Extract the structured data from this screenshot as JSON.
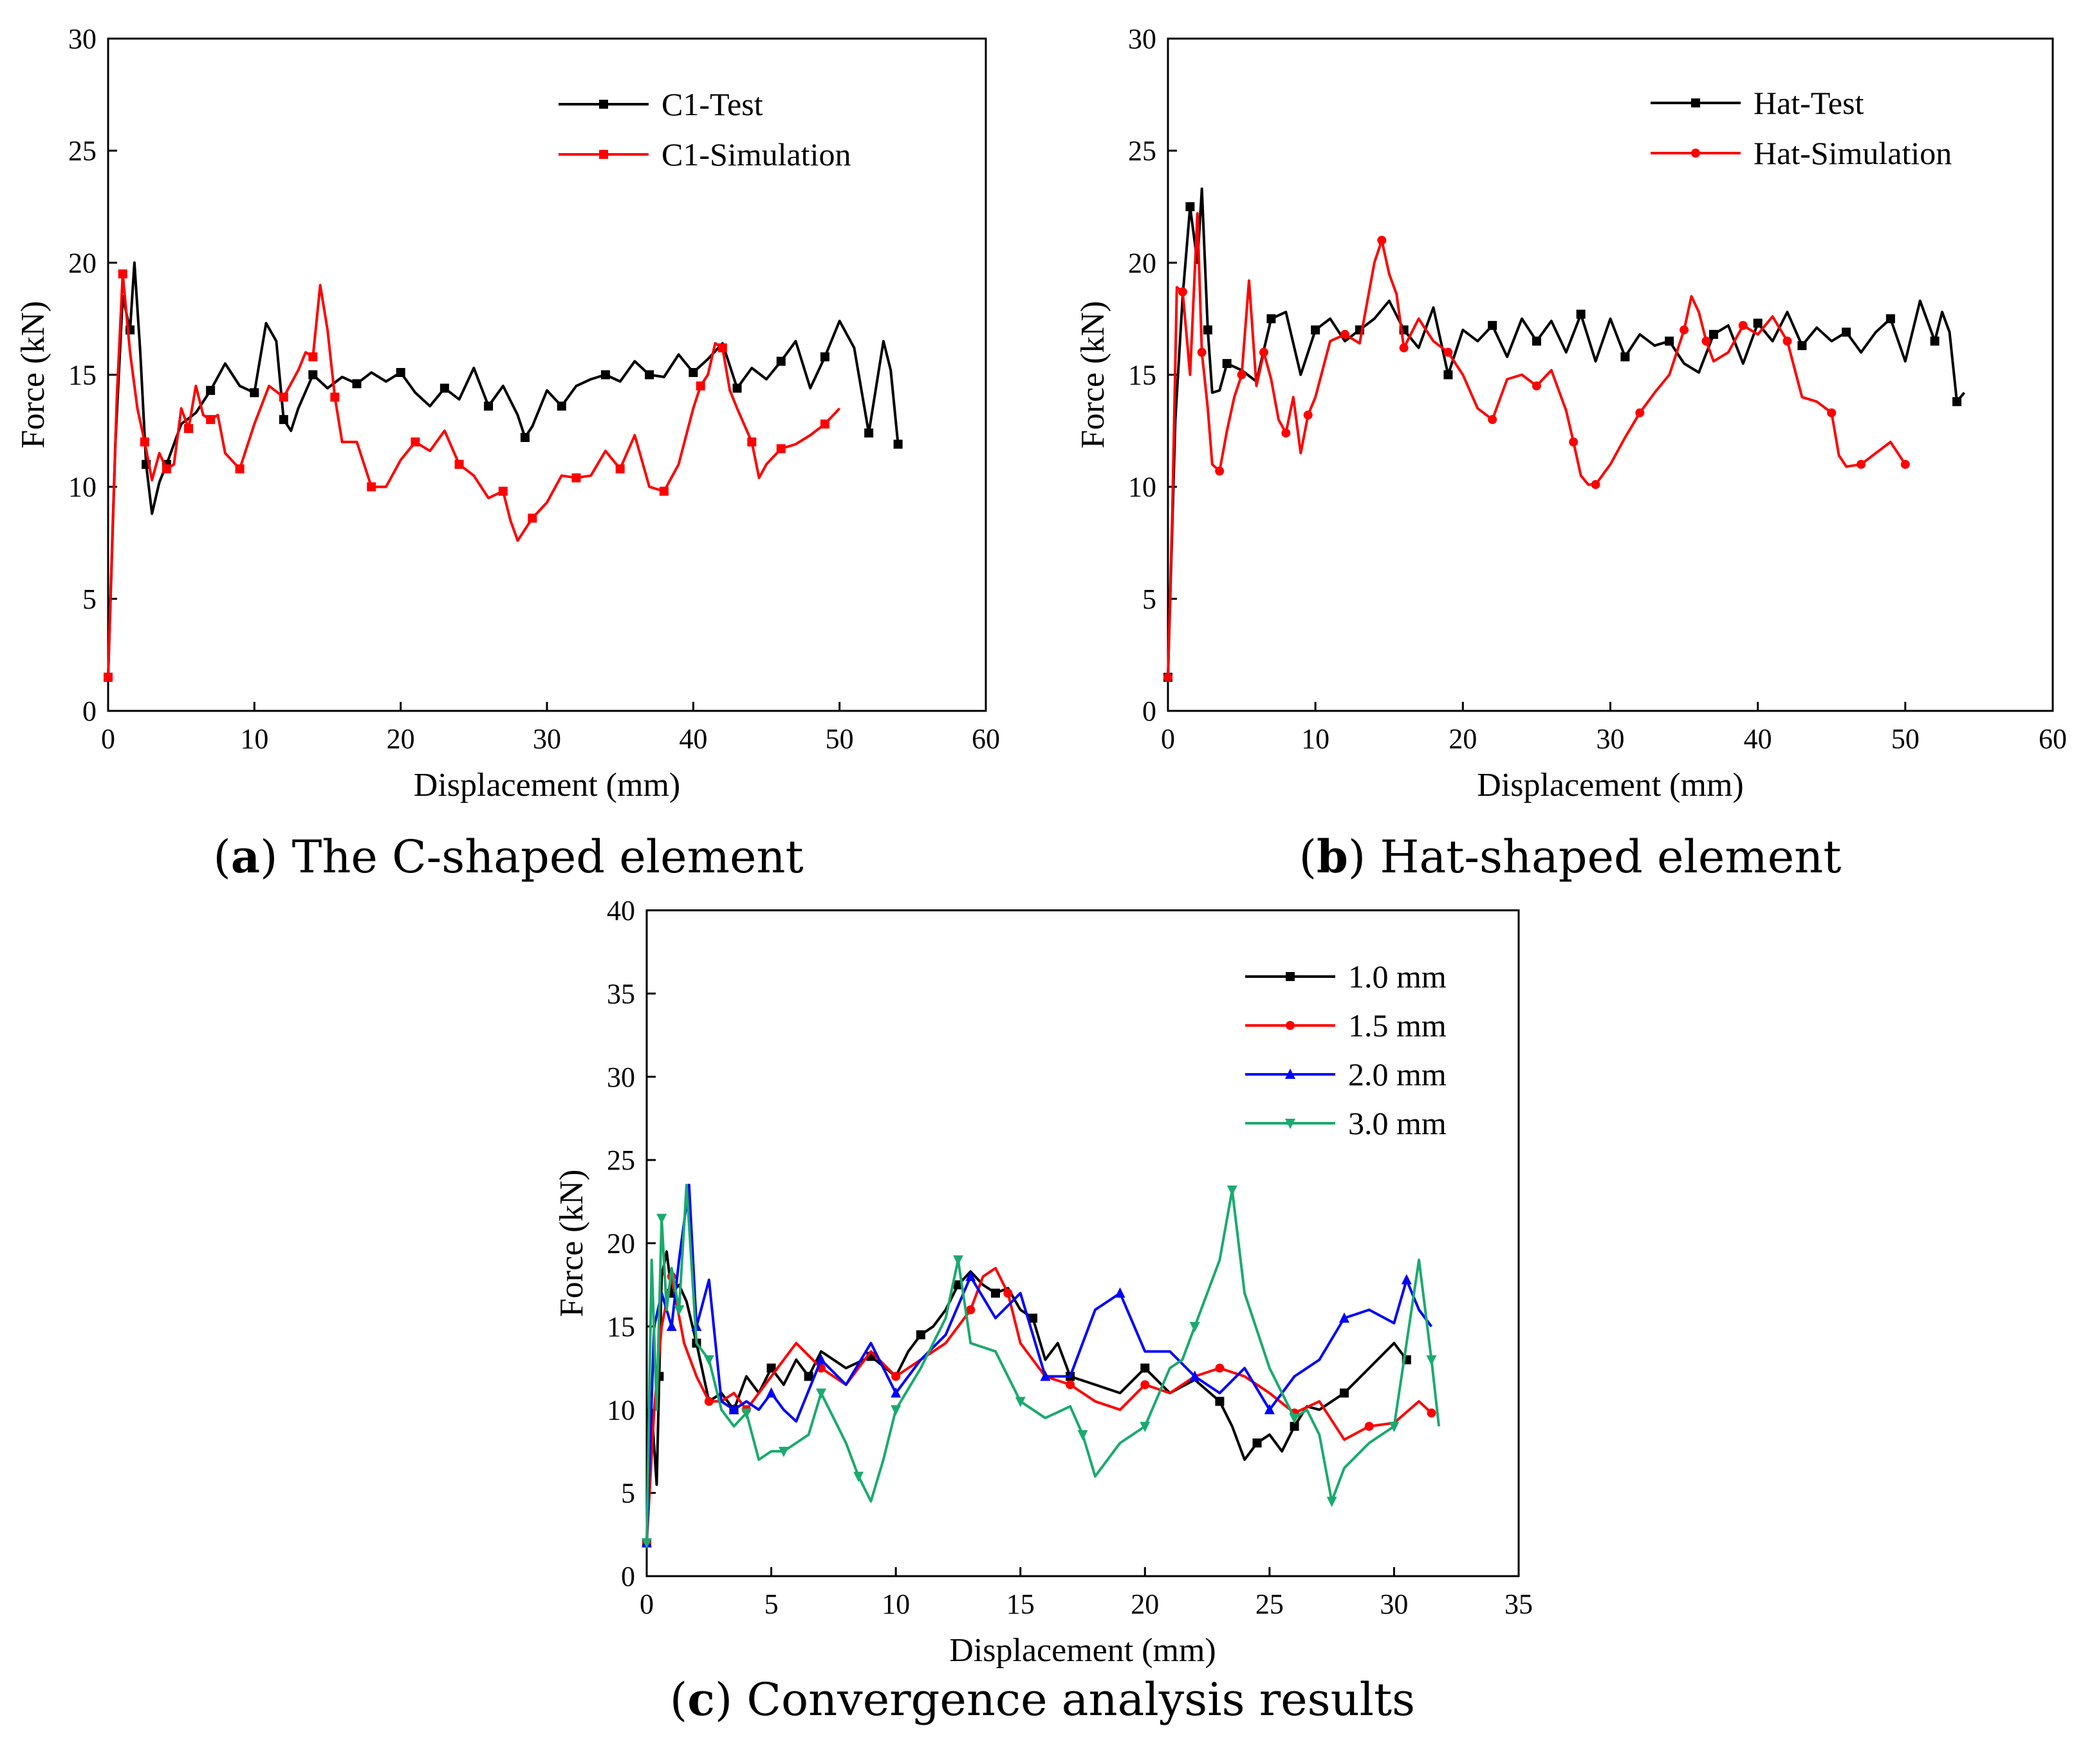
{
  "captions": [
    {
      "letter": "a",
      "text": "The C-shaped element"
    },
    {
      "letter": "b",
      "text": "Hat-shaped element"
    },
    {
      "letter": "c",
      "text": "Convergence analysis results"
    }
  ],
  "chart_data": [
    {
      "type": "line",
      "xlabel": "Displacement (mm)",
      "ylabel": "Force (kN)",
      "xlim": [
        0,
        60
      ],
      "ylim": [
        0,
        30
      ],
      "xticks": [
        0,
        10,
        20,
        30,
        40,
        50,
        60
      ],
      "yticks": [
        0,
        5,
        10,
        15,
        20,
        25,
        30
      ],
      "legend_position": "top-right",
      "series": [
        {
          "name": "C1-Test",
          "color": "#000000",
          "marker": "square",
          "x": [
            0,
            0.5,
            1,
            1.5,
            1.8,
            2.2,
            2.6,
            3,
            3.5,
            4,
            5,
            6,
            7,
            8,
            9,
            10,
            10.8,
            11.5,
            12,
            12.5,
            13,
            14,
            15,
            16,
            17,
            18,
            19,
            20,
            21,
            22,
            23,
            24,
            25,
            26,
            27,
            28,
            28.5,
            29,
            30,
            31,
            32,
            33,
            34,
            35,
            36,
            37,
            38,
            39,
            40,
            41,
            42,
            43,
            44,
            45,
            46,
            47,
            48,
            49,
            50,
            51,
            52,
            53,
            53.5,
            54
          ],
          "y": [
            1.5,
            12,
            18.5,
            17,
            20,
            16,
            11,
            8.8,
            10.2,
            11,
            12.8,
            13.3,
            14.3,
            15.5,
            14.5,
            14.2,
            17.3,
            16.5,
            13,
            12.5,
            13.5,
            15,
            14.4,
            14.9,
            14.6,
            15.1,
            14.7,
            15.1,
            14.2,
            13.6,
            14.4,
            13.9,
            15.3,
            13.6,
            14.5,
            13.2,
            12.2,
            12.7,
            14.3,
            13.6,
            14.5,
            14.8,
            15,
            14.7,
            15.6,
            15,
            14.9,
            15.9,
            15.1,
            15.7,
            16.4,
            14.4,
            15.3,
            14.8,
            15.6,
            16.5,
            14.4,
            15.8,
            17.4,
            16.2,
            12.4,
            16.5,
            15.2,
            11.9
          ]
        },
        {
          "name": "C1-Simulation",
          "color": "#ff0000",
          "marker": "square",
          "x": [
            0,
            0.3,
            0.6,
            1,
            1.5,
            2,
            2.5,
            3,
            3.5,
            4,
            4.5,
            5,
            5.5,
            6,
            6.5,
            7,
            7.5,
            8,
            9,
            10,
            11,
            12,
            13,
            13.5,
            14,
            14.5,
            15,
            15.5,
            16,
            17,
            18,
            19,
            20,
            21,
            22,
            23,
            24,
            25,
            26,
            27,
            27.5,
            28,
            29,
            30,
            31,
            32,
            33,
            34,
            35,
            36,
            37,
            38,
            39,
            40,
            40.5,
            41,
            41.5,
            42,
            42.5,
            43,
            44,
            44.5,
            45,
            46,
            47,
            48,
            49,
            50
          ],
          "y": [
            1.5,
            8,
            14,
            19.5,
            16,
            13.5,
            12,
            10.3,
            11.5,
            10.8,
            11,
            13.5,
            12.6,
            14.5,
            13.2,
            13,
            13.2,
            11.5,
            10.8,
            12.8,
            14.5,
            14,
            15.2,
            16,
            15.8,
            19,
            17,
            14,
            12,
            12,
            10,
            10,
            11.2,
            12,
            11.6,
            12.5,
            11,
            10.5,
            9.5,
            9.8,
            8.5,
            7.6,
            8.6,
            9.3,
            10.5,
            10.4,
            10.5,
            11.6,
            10.8,
            12.3,
            10,
            9.8,
            11,
            13.5,
            14.5,
            15,
            16.4,
            16.2,
            14.3,
            13.5,
            12,
            10.4,
            11,
            11.7,
            11.9,
            12.3,
            12.8,
            13.5
          ]
        }
      ]
    },
    {
      "type": "line",
      "xlabel": "Displacement (mm)",
      "ylabel": "Force (kN)",
      "xlim": [
        0,
        60
      ],
      "ylim": [
        0,
        30
      ],
      "xticks": [
        0,
        10,
        20,
        30,
        40,
        50,
        60
      ],
      "yticks": [
        0,
        5,
        10,
        15,
        20,
        25,
        30
      ],
      "legend_position": "top-right",
      "series": [
        {
          "name": "Hat-Test",
          "color": "#000000",
          "marker": "square",
          "x": [
            0,
            0.5,
            1,
            1.5,
            2,
            2.3,
            2.7,
            3,
            3.5,
            4,
            5,
            6,
            7,
            8,
            9,
            10,
            11,
            12,
            13,
            14,
            15,
            16,
            17,
            18,
            19,
            20,
            21,
            22,
            23,
            24,
            25,
            26,
            27,
            28,
            29,
            30,
            31,
            32,
            33,
            34,
            35,
            36,
            37,
            38,
            39,
            40,
            41,
            42,
            43,
            44,
            45,
            46,
            47,
            48,
            49,
            50,
            51,
            52,
            52.5,
            53,
            53.5,
            54
          ],
          "y": [
            1.5,
            13,
            18.5,
            22.5,
            20,
            23.3,
            17,
            14.2,
            14.3,
            15.5,
            15.2,
            14.7,
            17.5,
            17.8,
            15,
            17,
            17.5,
            16.5,
            17,
            17.5,
            18.3,
            17,
            16.2,
            18,
            15,
            17,
            16.5,
            17.2,
            15.8,
            17.5,
            16.5,
            17.4,
            16,
            17.7,
            15.6,
            17.5,
            15.8,
            16.8,
            16.3,
            16.5,
            15.5,
            15.1,
            16.8,
            17.2,
            15.5,
            17.3,
            16.5,
            17.8,
            16.3,
            17.1,
            16.5,
            16.9,
            16,
            16.9,
            17.5,
            15.6,
            18.3,
            16.5,
            17.8,
            16.9,
            13.8,
            14.2
          ]
        },
        {
          "name": "Hat-Simulation",
          "color": "#ff0000",
          "marker": "circle",
          "x": [
            0,
            0.3,
            0.6,
            1,
            1.5,
            2,
            2.3,
            2.7,
            3,
            3.5,
            4,
            4.5,
            5,
            5.5,
            6,
            6.5,
            7,
            7.5,
            8,
            8.5,
            9,
            9.5,
            10,
            11,
            12,
            13,
            14,
            14.5,
            15,
            15.5,
            16,
            17,
            18,
            19,
            20,
            21,
            22,
            23,
            24,
            25,
            26,
            27,
            27.5,
            28,
            28.5,
            29,
            30,
            31,
            32,
            33,
            34,
            35,
            35.5,
            36,
            36.5,
            37,
            38,
            39,
            40,
            41,
            42,
            43,
            44,
            45,
            45.5,
            46,
            47,
            48,
            49,
            50
          ],
          "y": [
            1.5,
            9,
            18.9,
            18.7,
            15,
            22.2,
            16,
            13.5,
            11,
            10.7,
            12.5,
            14,
            15,
            19.2,
            14.5,
            16,
            14.8,
            13,
            12.4,
            14,
            11.5,
            13.2,
            14,
            16.5,
            16.8,
            16.4,
            20,
            21,
            19.5,
            18.6,
            16.2,
            17.5,
            16.5,
            16,
            15,
            13.5,
            13,
            14.8,
            15,
            14.5,
            15.2,
            13.4,
            12,
            10.5,
            10.1,
            10.1,
            11,
            12.2,
            13.3,
            14.2,
            15,
            17,
            18.5,
            17.8,
            16.5,
            15.6,
            16,
            17.2,
            16.8,
            17.6,
            16.5,
            14,
            13.8,
            13.3,
            11.4,
            10.9,
            11,
            11.5,
            12,
            11
          ]
        }
      ]
    },
    {
      "type": "line",
      "xlabel": "Displacement (mm)",
      "ylabel": "Force (kN)",
      "xlim": [
        0,
        35
      ],
      "ylim": [
        0,
        40
      ],
      "xticks": [
        0,
        5,
        10,
        15,
        20,
        25,
        30,
        35
      ],
      "yticks": [
        0,
        5,
        10,
        15,
        20,
        25,
        30,
        35,
        40
      ],
      "legend_position": "top-right",
      "series": [
        {
          "name": "1.0 mm",
          "color": "#000000",
          "marker": "square",
          "x": [
            0,
            0.2,
            0.4,
            0.5,
            0.6,
            0.8,
            1,
            1.3,
            1.6,
            2,
            2.5,
            3,
            3.5,
            4,
            4.5,
            5,
            5.5,
            6,
            6.5,
            7,
            8,
            9,
            10,
            10.5,
            11,
            11.5,
            12,
            12.5,
            13,
            13.5,
            14,
            14.5,
            15,
            15.5,
            16,
            16.5,
            17,
            18,
            19,
            20,
            21,
            22,
            23,
            23.5,
            24,
            24.5,
            25,
            25.5,
            26,
            26.5,
            27,
            28,
            29,
            30,
            30.5
          ],
          "y": [
            2,
            10,
            5.5,
            12,
            18,
            19.5,
            17,
            17.5,
            16.5,
            14,
            10.5,
            11,
            10,
            12,
            11,
            12.5,
            11.5,
            13,
            12,
            13.5,
            12.5,
            13.2,
            12,
            13.5,
            14.5,
            15,
            16,
            17.5,
            18.3,
            17.5,
            17,
            17.3,
            16,
            15.5,
            13,
            14,
            12,
            11.5,
            11,
            12.5,
            11,
            11.8,
            10.5,
            9,
            7,
            8,
            8.5,
            7.5,
            9,
            10.2,
            10,
            11,
            12.5,
            14,
            13
          ]
        },
        {
          "name": "1.5 mm",
          "color": "#ff0000",
          "marker": "circle",
          "x": [
            0,
            0.3,
            0.6,
            1,
            1.5,
            2,
            2.5,
            3,
            3.5,
            4,
            5,
            6,
            7,
            8,
            9,
            10,
            11,
            12,
            13,
            13.5,
            14,
            14.5,
            15,
            16,
            17,
            18,
            19,
            20,
            21,
            22,
            23,
            24,
            25,
            26,
            27,
            28,
            29,
            30,
            31,
            31.5
          ],
          "y": [
            2,
            10,
            15,
            18,
            14,
            12,
            10.5,
            10.5,
            11,
            10,
            12,
            14,
            12.5,
            11.5,
            13.5,
            12,
            13,
            14,
            16,
            18,
            18.5,
            17,
            14,
            12,
            11.5,
            10.5,
            10,
            11.5,
            11,
            12,
            12.5,
            12,
            11,
            9.8,
            10.5,
            8.2,
            9,
            9.2,
            10.5,
            9.8
          ]
        },
        {
          "name": "2.0 mm",
          "color": "#0000ff",
          "marker": "triangle-up",
          "x": [
            0,
            0.3,
            0.6,
            1,
            1.3,
            1.7,
            2,
            2.5,
            3,
            3.5,
            4,
            4.5,
            5,
            5.5,
            6,
            7,
            8,
            9,
            10,
            11,
            12,
            13,
            14,
            15,
            16,
            17,
            18,
            19,
            20,
            21,
            22,
            23,
            24,
            25,
            26,
            27,
            28,
            29,
            30,
            30.5,
            31,
            31.5
          ],
          "y": [
            2,
            15,
            17,
            15,
            19,
            23.5,
            15,
            17.8,
            10.5,
            10,
            10.5,
            10,
            11,
            10,
            9.3,
            13,
            11.5,
            14,
            11,
            13,
            14.5,
            18,
            15.5,
            17,
            12,
            12,
            16,
            17,
            13.5,
            13.5,
            12,
            11,
            12.5,
            10,
            12,
            13,
            15.5,
            16,
            15.2,
            17.8,
            16,
            15
          ]
        },
        {
          "name": "3.0 mm",
          "color": "#1aaa6e",
          "marker": "triangle-down",
          "x": [
            0,
            0.2,
            0.4,
            0.6,
            0.8,
            1,
            1.3,
            1.6,
            2,
            2.5,
            3,
            3.5,
            4,
            4.5,
            5,
            5.5,
            6,
            6.5,
            7,
            7.5,
            8,
            8.5,
            9,
            9.5,
            10,
            11,
            12,
            12.5,
            13,
            14,
            15,
            16,
            17,
            17.5,
            18,
            19,
            20,
            21,
            21.5,
            22,
            22.5,
            23,
            23.5,
            24,
            25,
            26,
            26.5,
            27,
            27.5,
            28,
            29,
            30,
            30.5,
            31,
            31.5,
            31.8
          ],
          "y": [
            2,
            19,
            10,
            21.5,
            16,
            18.5,
            16,
            23.5,
            14,
            13,
            10,
            9,
            9.8,
            7,
            7.5,
            7.5,
            8,
            8.5,
            11,
            9.5,
            8,
            6,
            4.5,
            7,
            10,
            12.5,
            15.5,
            19,
            14,
            13.5,
            10.5,
            9.5,
            10.2,
            8.5,
            6,
            8,
            9,
            12.5,
            13,
            15,
            17,
            19,
            23.2,
            17,
            12.5,
            9.5,
            10,
            8.5,
            4.5,
            6.5,
            8,
            9,
            14,
            19,
            13,
            9
          ]
        }
      ]
    }
  ]
}
